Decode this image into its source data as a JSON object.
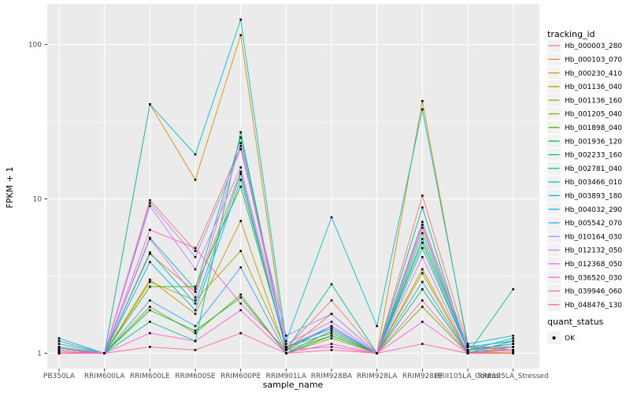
{
  "chart_data": {
    "type": "line",
    "title": "",
    "xlabel": "sample_name",
    "ylabel": "FPKM + 1",
    "y_scale": "log10",
    "y_ticks": [
      1,
      10,
      100
    ],
    "y_minor_ticks": [
      3.1623,
      31.623
    ],
    "ylim": [
      0.8,
      185
    ],
    "grid": "on",
    "legend_position": "right",
    "categories": [
      "PB350LA",
      "RRIM600LA",
      "RRIM600LE",
      "RRIM600SE",
      "RRIM600PE",
      "RRIM901LA",
      "RRIM928BA",
      "RRIM928LA",
      "RRIM928LE",
      "RRII105LA_Control",
      "RRII105LA_Stressed"
    ],
    "series": [
      {
        "name": "Hb_000003_280",
        "color": "#F8766D",
        "values": [
          1.05,
          1.0,
          9.8,
          4.6,
          22,
          1.08,
          2.2,
          1.0,
          10.5,
          1.12,
          1.05
        ]
      },
      {
        "name": "Hb_000103_070",
        "color": "#EA8331",
        "values": [
          1.1,
          1.0,
          4.4,
          2.5,
          15,
          1.05,
          1.8,
          1.0,
          6.5,
          1.05,
          1.1
        ]
      },
      {
        "name": "Hb_000230_410",
        "color": "#D89000",
        "values": [
          1.0,
          1.0,
          41,
          13.3,
          115,
          1.05,
          1.5,
          1.0,
          43,
          1.1,
          1.05
        ]
      },
      {
        "name": "Hb_001136_040",
        "color": "#C09B00",
        "values": [
          1.0,
          1.0,
          3.0,
          1.8,
          7.2,
          1.0,
          1.4,
          1.0,
          3.3,
          1.0,
          1.02
        ]
      },
      {
        "name": "Hb_001136_160",
        "color": "#A3A500",
        "values": [
          1.0,
          1.0,
          2.9,
          2.2,
          4.6,
          1.05,
          1.3,
          1.0,
          3.5,
          1.02,
          1.05
        ]
      },
      {
        "name": "Hb_001205_040",
        "color": "#7CAE00",
        "values": [
          1.02,
          1.0,
          2.0,
          1.35,
          2.4,
          1.0,
          1.25,
          1.0,
          2.0,
          1.0,
          1.1
        ]
      },
      {
        "name": "Hb_001898_040",
        "color": "#39B600",
        "values": [
          1.08,
          1.0,
          2.7,
          2.7,
          12,
          1.1,
          1.35,
          1.0,
          5.2,
          1.05,
          1.15
        ]
      },
      {
        "name": "Hb_001936_120",
        "color": "#00BB4E",
        "values": [
          1.05,
          1.0,
          1.9,
          1.4,
          2.3,
          1.0,
          1.3,
          1.0,
          2.6,
          1.0,
          1.2
        ]
      },
      {
        "name": "Hb_002233_160",
        "color": "#00BF7D",
        "values": [
          1.2,
          1.0,
          1.6,
          1.2,
          27,
          1.05,
          2.8,
          1.0,
          8.8,
          1.0,
          2.6
        ]
      },
      {
        "name": "Hb_002781_040",
        "color": "#00C1A3",
        "values": [
          1.25,
          1.0,
          5.6,
          2.6,
          25,
          1.1,
          1.45,
          1.0,
          6.0,
          1.05,
          1.25
        ]
      },
      {
        "name": "Hb_003466_010",
        "color": "#00BFC4",
        "values": [
          1.15,
          1.0,
          41,
          19.4,
          145,
          1.2,
          7.6,
          1.5,
          38,
          1.15,
          1.3
        ]
      },
      {
        "name": "Hb_003893_180",
        "color": "#00BAE0",
        "values": [
          1.1,
          1.0,
          4.5,
          2.1,
          14.5,
          1.05,
          1.5,
          1.0,
          5.5,
          1.1,
          1.2
        ]
      },
      {
        "name": "Hb_004032_290",
        "color": "#00B0F6",
        "values": [
          1.05,
          1.0,
          3.9,
          1.9,
          13.3,
          1.1,
          1.45,
          1.0,
          4.8,
          1.05,
          1.15
        ]
      },
      {
        "name": "Hb_005542_070",
        "color": "#35A2FF",
        "values": [
          1.0,
          1.0,
          2.2,
          1.5,
          3.6,
          1.0,
          1.4,
          1.0,
          2.9,
          1.0,
          1.1
        ]
      },
      {
        "name": "Hb_010164_030",
        "color": "#9590FF",
        "values": [
          1.2,
          1.0,
          9.4,
          4.2,
          21,
          1.3,
          1.8,
          1.0,
          7.1,
          1.1,
          1.1
        ]
      },
      {
        "name": "Hb_012132_050",
        "color": "#C77CFF",
        "values": [
          1.1,
          1.0,
          9.0,
          3.5,
          16,
          1.15,
          1.6,
          1.0,
          6.8,
          1.05,
          1.05
        ]
      },
      {
        "name": "Hb_012368_050",
        "color": "#E76BF3",
        "values": [
          1.05,
          1.0,
          5.5,
          2.3,
          23,
          1.1,
          1.5,
          1.0,
          4.2,
          1.0,
          1.0
        ]
      },
      {
        "name": "Hb_036520_030",
        "color": "#FA62DB",
        "values": [
          1.0,
          1.0,
          1.35,
          1.2,
          1.9,
          1.0,
          1.15,
          1.0,
          1.6,
          1.0,
          1.0
        ]
      },
      {
        "name": "Hb_039946_060",
        "color": "#FF62BC",
        "values": [
          1.02,
          1.0,
          6.3,
          4.8,
          2.1,
          1.05,
          1.1,
          1.0,
          2.2,
          1.0,
          1.05
        ]
      },
      {
        "name": "Hb_048476_130",
        "color": "#FF6A98",
        "values": [
          1.0,
          1.0,
          1.1,
          1.05,
          1.35,
          1.0,
          1.05,
          1.0,
          1.15,
          1.0,
          1.0
        ]
      }
    ],
    "point_marker": {
      "shape": "square",
      "color": "#000000"
    }
  },
  "legend": {
    "tracking_title": "tracking_id",
    "quant_title": "quant_status",
    "quant_items": [
      {
        "label": "OK",
        "marker": "black-square"
      }
    ]
  },
  "theme": {
    "panel_bg": "#EBEBEB",
    "grid_major": "#FFFFFF",
    "grid_minor": "#F7F7F7",
    "axis_text": "#4D4D4D",
    "tick_mark": "#333333",
    "legend_key_bg": "#F2F2F2",
    "text": "#000000"
  }
}
